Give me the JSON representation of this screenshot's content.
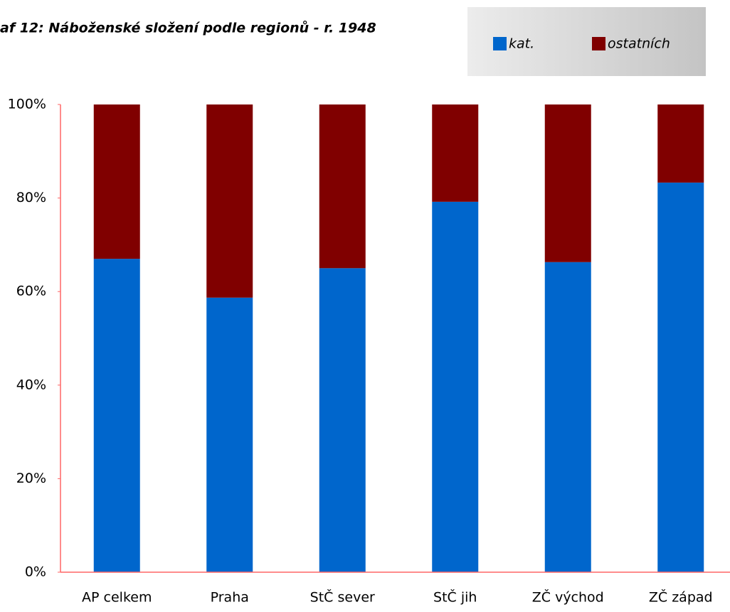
{
  "chart_data": {
    "type": "stacked_bar",
    "title": "af 12: Náboženské složení podle regionů - r. 1948",
    "categories": [
      "AP celkem",
      "Praha",
      "StČ sever",
      "StČ jih",
      "ZČ východ",
      "ZČ západ"
    ],
    "series": [
      {
        "name": "kat.",
        "color": "#0066cc",
        "values": [
          67.0,
          58.7,
          65.0,
          79.2,
          66.3,
          83.3
        ]
      },
      {
        "name": "ostatních",
        "color": "#800000",
        "values": [
          33.0,
          41.3,
          35.0,
          20.8,
          33.7,
          16.7
        ]
      }
    ],
    "ylim": [
      0,
      100
    ],
    "yticks": [
      {
        "value": 0,
        "label": "0%"
      },
      {
        "value": 20,
        "label": "20%"
      },
      {
        "value": 40,
        "label": "40%"
      },
      {
        "value": 60,
        "label": "60%"
      },
      {
        "value": 80,
        "label": "80%"
      },
      {
        "value": 100,
        "label": "100%"
      }
    ],
    "legend": "top-right",
    "axis_color": "#ff6666"
  }
}
